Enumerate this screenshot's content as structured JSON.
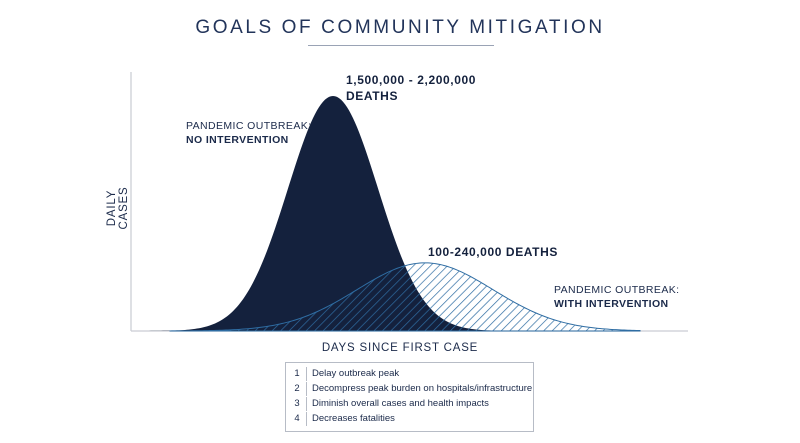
{
  "title": "GOALS OF COMMUNITY MITIGATION",
  "chart_data": {
    "type": "area",
    "ylabel": "DAILY CASES",
    "xlabel": "DAYS SINCE FIRST CASE",
    "grid": false,
    "series": [
      {
        "label_line1": "PANDEMIC OUTBREAK:",
        "label_line2": "NO INTERVENTION",
        "deaths_line1": "1,500,000 - 2,200,000",
        "deaths_line2": "DEATHS",
        "fill": "#14213d",
        "style": "solid",
        "peak_relative": 1.0
      },
      {
        "label_line1": "PANDEMIC OUTBREAK:",
        "label_line2": "WITH INTERVENTION",
        "deaths_line1": "100-240,000 DEATHS",
        "fill": "#2f6da3",
        "style": "hatched",
        "peak_relative": 0.29
      }
    ]
  },
  "goals": [
    {
      "num": "1",
      "text": "Delay outbreak peak"
    },
    {
      "num": "2",
      "text": "Decompress peak burden on hospitals/infrastructure"
    },
    {
      "num": "3",
      "text": "Diminish overall cases and health impacts"
    },
    {
      "num": "4",
      "text": "Decreases fatalities"
    }
  ]
}
